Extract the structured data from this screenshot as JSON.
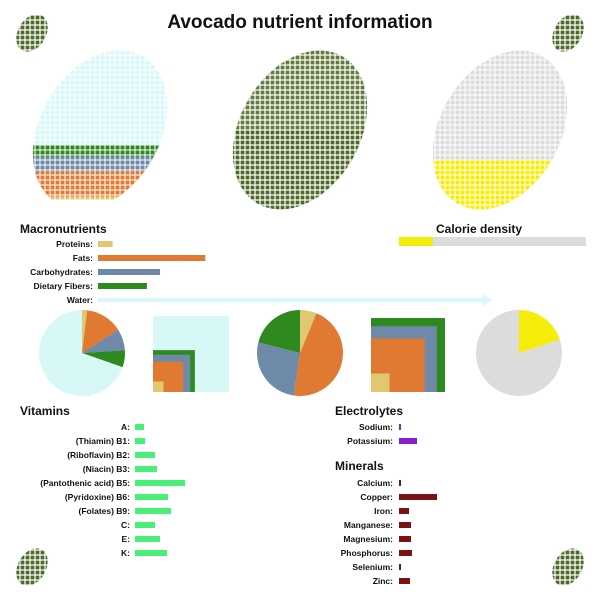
{
  "title": "Avocado nutrient information",
  "colors": {
    "protein": "#e0c870",
    "fat": "#e07a32",
    "carb": "#6e8aa8",
    "fiber": "#2e8a1e",
    "water": "#d8f7f7",
    "calorie": "#f5ec0a",
    "grey": "#dcdcdc",
    "vitamin": "#4cee7a",
    "electrolyte": "#8a1ec8",
    "mineral": "#7a1414",
    "skin": "#4e6a2a"
  },
  "icons": [
    "avocado-icon-top-left",
    "avocado-icon-top-right",
    "avocado-icon-bottom-left",
    "avocado-icon-bottom-right"
  ],
  "macro": {
    "heading": "Macronutrients",
    "items": [
      {
        "label": "Proteins:",
        "value": 2.0,
        "key": "protein"
      },
      {
        "label": "Fats:",
        "value": 14.7,
        "key": "fat"
      },
      {
        "label": "Carbohydrates:",
        "value": 8.5,
        "key": "carb"
      },
      {
        "label": "Dietary Fibers:",
        "value": 6.7,
        "key": "fiber"
      },
      {
        "label": "Water:",
        "value": 73.2,
        "key": "water"
      }
    ]
  },
  "calorie": {
    "heading": "Calorie density",
    "value": 0.2
  },
  "vitamins": {
    "heading": "Vitamins",
    "items": [
      {
        "label": "A:",
        "value": 0.9
      },
      {
        "label": "(Thiamin) B1:",
        "value": 1
      },
      {
        "label": "(Riboflavin) B2:",
        "value": 2.0
      },
      {
        "label": "(Niacin) B3:",
        "value": 2.2
      },
      {
        "label": "(Pantothenic acid) B5:",
        "value": 5.0
      },
      {
        "label": "(Pyridoxine) B6:",
        "value": 3.3
      },
      {
        "label": "(Folates) B9:",
        "value": 3.6
      },
      {
        "label": "C:",
        "value": 2.0
      },
      {
        "label": "E:",
        "value": 2.5
      },
      {
        "label": "K:",
        "value": 3.2
      }
    ]
  },
  "electrolytes": {
    "heading": "Electrolytes",
    "items": [
      {
        "label": "Sodium:",
        "value": 0.1
      },
      {
        "label": "Potassium:",
        "value": 1.8
      }
    ]
  },
  "minerals": {
    "heading": "Minerals",
    "items": [
      {
        "label": "Calcium:",
        "value": 0.2
      },
      {
        "label": "Copper:",
        "value": 3.8
      },
      {
        "label": "Iron:",
        "value": 1.0
      },
      {
        "label": "Manganese:",
        "value": 1.2
      },
      {
        "label": "Magnesium:",
        "value": 1.2
      },
      {
        "label": "Phosphorus:",
        "value": 1.3
      },
      {
        "label": "Selenium:",
        "value": 0.1
      },
      {
        "label": "Zinc:",
        "value": 1.1
      }
    ]
  },
  "chart_data": [
    {
      "type": "bar",
      "title": "Macronutrients",
      "categories": [
        "Proteins",
        "Fats",
        "Carbohydrates",
        "Dietary Fibers",
        "Water"
      ],
      "values": [
        2.0,
        14.7,
        8.5,
        6.7,
        73.2
      ]
    },
    {
      "type": "pie",
      "categories": [
        "Proteins",
        "Fats",
        "Carbohydrates",
        "Dietary Fibers",
        "Water"
      ],
      "values": [
        2.0,
        14.7,
        8.5,
        6.7,
        73.2
      ]
    },
    {
      "type": "pie",
      "categories": [
        "Proteins",
        "Fats",
        "Carbohydrates",
        "Dietary Fibers"
      ],
      "values": [
        2.0,
        14.7,
        8.5,
        6.7
      ]
    },
    {
      "type": "pie",
      "title": "Calorie density",
      "values": [
        0.2,
        0.8
      ]
    },
    {
      "type": "bar",
      "title": "Vitamins",
      "categories": [
        "A",
        "(Thiamin) B1",
        "(Riboflavin) B2",
        "(Niacin) B3",
        "(Pantothenic acid) B5",
        "(Pyridoxine) B6",
        "(Folates) B9",
        "C",
        "E",
        "K"
      ],
      "values": [
        0.9,
        1,
        2.0,
        2.2,
        5.0,
        3.3,
        3.6,
        2.0,
        2.5,
        3.2
      ]
    },
    {
      "type": "bar",
      "title": "Electrolytes",
      "categories": [
        "Sodium",
        "Potassium"
      ],
      "values": [
        0.1,
        1.8
      ]
    },
    {
      "type": "bar",
      "title": "Minerals",
      "categories": [
        "Calcium",
        "Copper",
        "Iron",
        "Manganese",
        "Magnesium",
        "Phosphorus",
        "Selenium",
        "Zinc"
      ],
      "values": [
        0.2,
        3.8,
        1.0,
        1.2,
        1.2,
        1.3,
        0.1,
        1.1
      ]
    }
  ]
}
